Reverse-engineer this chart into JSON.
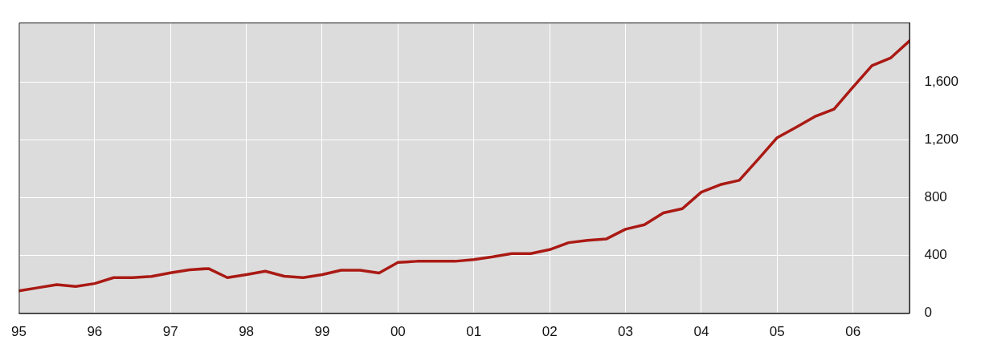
{
  "chart_data": {
    "type": "line",
    "x": [
      1995,
      1995.25,
      1995.5,
      1995.75,
      1996,
      1996.25,
      1996.5,
      1996.75,
      1997,
      1997.25,
      1997.5,
      1997.75,
      1998,
      1998.25,
      1998.5,
      1998.75,
      1999,
      1999.25,
      1999.5,
      1999.75,
      2000,
      2000.25,
      2000.5,
      2000.75,
      2001,
      2001.25,
      2001.5,
      2001.75,
      2002,
      2002.25,
      2002.5,
      2002.75,
      2003,
      2003.25,
      2003.5,
      2003.75,
      2004,
      2004.25,
      2004.5,
      2004.75,
      2005,
      2005.25,
      2005.5,
      2005.75,
      2006,
      2006.25,
      2006.5,
      2006.75
    ],
    "series": [
      {
        "color": "#aa1a14",
        "values": [
          155,
          176,
          197,
          185,
          205,
          246,
          246,
          254,
          279,
          300,
          309,
          246,
          267,
          290,
          256,
          246,
          267,
          297,
          297,
          278,
          351,
          359,
          359,
          359,
          371,
          390,
          412,
          412,
          440,
          488,
          504,
          514,
          581,
          612,
          694,
          723,
          837,
          889,
          919,
          1065,
          1214,
          1286,
          1361,
          1411,
          1564,
          1712,
          1767,
          1886
        ]
      }
    ],
    "xlim": [
      1995,
      2006.75
    ],
    "xticks": [
      {
        "value": 1995,
        "label": "95"
      },
      {
        "value": 1996,
        "label": "96"
      },
      {
        "value": 1997,
        "label": "97"
      },
      {
        "value": 1998,
        "label": "98"
      },
      {
        "value": 1999,
        "label": "99"
      },
      {
        "value": 2000,
        "label": "00"
      },
      {
        "value": 2001,
        "label": "01"
      },
      {
        "value": 2002,
        "label": "02"
      },
      {
        "value": 2003,
        "label": "03"
      },
      {
        "value": 2004,
        "label": "04"
      },
      {
        "value": 2005,
        "label": "05"
      },
      {
        "value": 2006,
        "label": "06"
      }
    ],
    "ylim": [
      0,
      2010
    ],
    "yticks": [
      0,
      {
        "value": 400,
        "label": "400"
      },
      {
        "value": 800,
        "label": "800"
      },
      {
        "value": 1200,
        "label": "1,200"
      },
      {
        "value": 1600,
        "label": "1,600"
      }
    ],
    "grid": true,
    "legend": false,
    "marker": "none",
    "line_style": "solid"
  }
}
